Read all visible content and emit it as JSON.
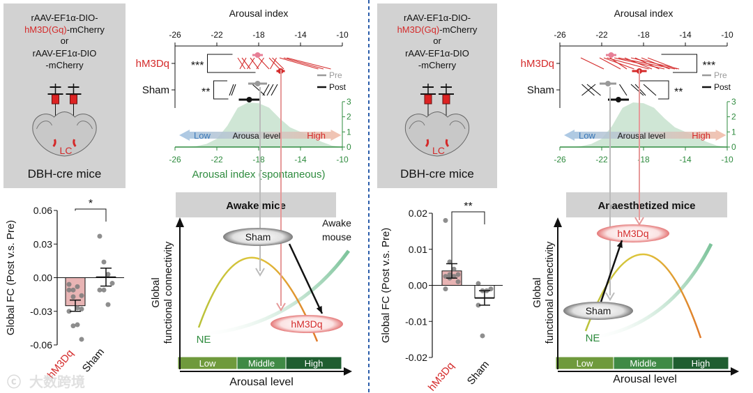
{
  "colors": {
    "red": "#d42a2a",
    "pink": "#e77f96",
    "green": "#2e8b3e",
    "hist_fill": "#cfe6d5",
    "gray_box": "#d2d2d2",
    "divider": "#2a5caa",
    "blue": "#3b78b8"
  },
  "watermark": "大数跨境",
  "panels": [
    {
      "construct": {
        "line1": "rAAV-EF1α-DIO-",
        "line2_red": "hM3D(Gq)",
        "line2_rest": "-mCherry",
        "or": "or",
        "line3": "rAAV-EF1α-DIO",
        "line4": "-mCherry",
        "region": "LC",
        "mouse": "DBH-cre mice"
      },
      "schematic": {
        "title": "Awake mice",
        "ylabel1": "Global",
        "ylabel2": "functional connectivity",
        "xlabel": "Arousal level",
        "levels": [
          "Low",
          "Middle",
          "High"
        ],
        "ne": "NE",
        "sham": "Sham",
        "hm3dq": "hM3Dq",
        "note": [
          "Awake",
          "mouse"
        ]
      }
    },
    {
      "construct": {
        "line1": "rAAV-EF1α-DIO-",
        "line2_red": "hM3D(Gq)",
        "line2_rest": "-mCherry",
        "or": "or",
        "line3": "rAAV-EF1α-DIO",
        "line4": "-mCherry",
        "region": "LC",
        "mouse": "DBH-cre mice"
      },
      "schematic": {
        "title": "Anaesthetized mice",
        "ylabel1": "Global",
        "ylabel2": "functional connectivity",
        "xlabel": "Arousal level",
        "levels": [
          "Low",
          "Middle",
          "High"
        ],
        "ne": "NE",
        "sham": "Sham",
        "hm3dq": "hM3Dq",
        "note": []
      }
    }
  ],
  "chart_data": [
    {
      "type": "scatter",
      "title": "Arousal index",
      "xlim": [
        -26,
        -10
      ],
      "ticks": [
        -26,
        -22,
        -18,
        -14,
        -10
      ],
      "legend": [
        "Pre",
        "Post"
      ],
      "groups": [
        {
          "label": "hM3Dq",
          "sig": "***",
          "pre_mean": -18.1,
          "pre_err": 0.5,
          "post_mean": -15.9,
          "post_err": 0.4,
          "pairs": [
            [
              -20.0,
              -19.3
            ],
            [
              -19.6,
              -18.8
            ],
            [
              -19.2,
              -19.8
            ],
            [
              -18.8,
              -18.0
            ],
            [
              -18.4,
              -19.1
            ],
            [
              -18.0,
              -17.0
            ],
            [
              -17.5,
              -18.2
            ],
            [
              -17.0,
              -16.0
            ],
            [
              -16.7,
              -15.6
            ],
            [
              -16.3,
              -16.9
            ],
            [
              -16.0,
              -12.3
            ],
            [
              -15.6,
              -11.8
            ],
            [
              -15.3,
              -11.1
            ]
          ]
        },
        {
          "label": "Sham",
          "sig": "**",
          "pre_mean": -18.1,
          "pre_err": 0.9,
          "post_mean": -18.9,
          "post_err": 1.0,
          "pairs": [
            [
              -20.4,
              -20.8
            ],
            [
              -20.2,
              -20.6
            ],
            [
              -18.6,
              -17.4
            ],
            [
              -17.0,
              -17.6
            ],
            [
              -16.6,
              -17.2
            ],
            [
              -16.2,
              -16.8
            ]
          ]
        }
      ],
      "histogram": {
        "ylim": [
          0,
          3
        ],
        "yticks": [
          0,
          1,
          2,
          3
        ],
        "xlabel": "Arousal index (spontaneous)",
        "x": [
          -26,
          -25,
          -24,
          -23,
          -22,
          -21,
          -20,
          -19,
          -18,
          -17,
          -16,
          -15,
          -14,
          -13,
          -12,
          -11,
          -10
        ],
        "values": [
          0,
          0,
          0.05,
          0.2,
          0.55,
          1.4,
          2.6,
          2.95,
          2.9,
          2.6,
          1.9,
          1.3,
          1.0,
          0.7,
          0.35,
          0.1,
          0
        ]
      },
      "arrow": {
        "low": "Low",
        "mid": "Arousal level",
        "high": "High"
      }
    },
    {
      "type": "bar",
      "ylabel": "Global FC (Post v.s. Pre)",
      "ylim": [
        -0.06,
        0.06
      ],
      "yticks": [
        "0.06",
        "0.03",
        "0.00",
        "-0.03",
        "-0.06"
      ],
      "categories": [
        "hM3Dq",
        "Sham"
      ],
      "values": [
        -0.025,
        0.0005
      ],
      "errors": [
        0.005,
        0.008
      ],
      "points": [
        [
          -0.006,
          -0.011,
          -0.008,
          -0.016,
          -0.011,
          -0.017,
          -0.027,
          -0.028,
          -0.03,
          -0.043,
          -0.042,
          -0.055
        ],
        [
          0.037,
          0.014,
          0.003,
          -0.005,
          -0.011,
          -0.011,
          -0.024
        ]
      ],
      "sig": "*"
    },
    {
      "type": "scatter",
      "title": "Arousal index",
      "xlim": [
        -26,
        -10
      ],
      "ticks": [
        -26,
        -22,
        -18,
        -14,
        -10
      ],
      "legend": [
        "Pre",
        "Post"
      ],
      "groups": [
        {
          "label": "hM3Dq",
          "sig": "***",
          "pre_mean": -21.1,
          "pre_err": 0.5,
          "post_mean": -18.4,
          "post_err": 0.7,
          "pairs": [
            [
              -24.0,
              -21.8
            ],
            [
              -22.2,
              -20.2
            ],
            [
              -21.8,
              -18.9
            ],
            [
              -21.5,
              -17.5
            ],
            [
              -21.2,
              -19.6
            ],
            [
              -20.8,
              -16.0
            ],
            [
              -20.4,
              -15.0
            ],
            [
              -19.8,
              -17.2
            ],
            [
              -19.2,
              -14.6
            ],
            [
              -18.8,
              -16.5
            ],
            [
              -18.2,
              -15.5
            ],
            [
              -17.6,
              -14.8
            ]
          ]
        },
        {
          "label": "Sham",
          "sig": "**",
          "pre_mean": -21.4,
          "pre_err": 0.8,
          "post_mean": -20.4,
          "post_err": 1.0,
          "pairs": [
            [
              -23.9,
              -22.7
            ],
            [
              -23.4,
              -22.1
            ],
            [
              -22.6,
              -23.9
            ],
            [
              -20.3,
              -19.6
            ],
            [
              -19.2,
              -18.0
            ],
            [
              -18.8,
              -17.8
            ],
            [
              -18.0,
              -16.8
            ]
          ]
        }
      ],
      "histogram": {
        "ylim": [
          0,
          3
        ],
        "yticks": [
          0,
          1,
          2,
          3
        ],
        "xlabel": "",
        "x": [
          -26,
          -25,
          -24,
          -23,
          -22,
          -21,
          -20,
          -19,
          -18,
          -17,
          -16,
          -15,
          -14,
          -13,
          -12,
          -11,
          -10
        ],
        "values": [
          0,
          0,
          0.05,
          0.2,
          0.55,
          1.4,
          2.6,
          2.95,
          2.9,
          2.6,
          1.9,
          1.3,
          1.0,
          0.7,
          0.35,
          0.1,
          0
        ]
      },
      "arrow": {
        "low": "Low",
        "mid": "Arousal level",
        "high": "High"
      }
    },
    {
      "type": "bar",
      "ylabel": "Global FC (Post v.s. Pre)",
      "ylim": [
        -0.02,
        0.02
      ],
      "yticks": [
        "0.02",
        "0.01",
        "0.00",
        "-0.01",
        "-0.02"
      ],
      "categories": [
        "hM3Dq",
        "Sham"
      ],
      "values": [
        0.004,
        -0.0035
      ],
      "errors": [
        0.002,
        0.002
      ],
      "points": [
        [
          0.018,
          0.0065,
          0.0045,
          0.003,
          0.0025,
          0.002,
          0.0025,
          0.001,
          -0.001,
          0.003
        ],
        [
          0.0005,
          -0.0015,
          -0.0015,
          -0.001,
          -0.0055,
          -0.014
        ]
      ],
      "sig": "**"
    }
  ]
}
